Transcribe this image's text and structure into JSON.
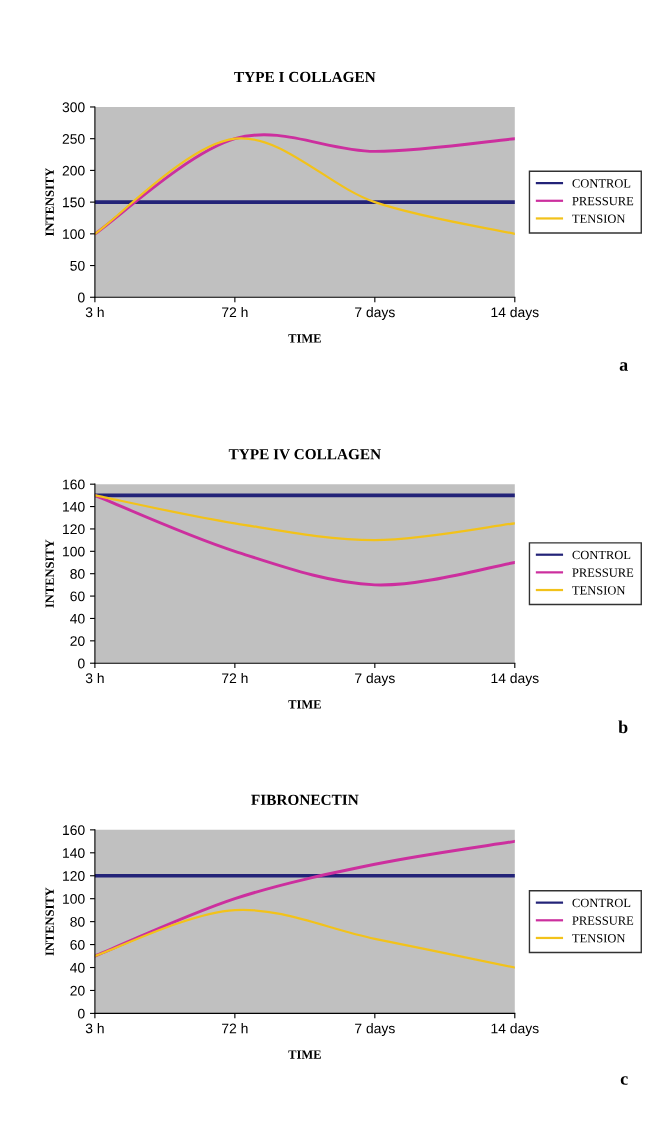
{
  "chart_data": [
    {
      "type": "line",
      "title": "TYPE I COLLAGEN",
      "xlabel": "TIME",
      "ylabel": "INTENSITY",
      "categories": [
        "3 h",
        "72 h",
        "7 days",
        "14 days"
      ],
      "ylim": [
        0,
        300
      ],
      "yticks": [
        0,
        50,
        100,
        150,
        200,
        250,
        300
      ],
      "legend": "right",
      "grid": false,
      "marker": "none",
      "annotations": [
        "a"
      ],
      "series": [
        {
          "name": "CONTROL",
          "color": "#232378",
          "values": [
            150,
            150,
            150,
            150
          ]
        },
        {
          "name": "PRESSURE",
          "color": "#cc2f9e",
          "values": [
            100,
            250,
            230,
            250
          ]
        },
        {
          "name": "TENSION",
          "color": "#f2c21a",
          "values": [
            100,
            250,
            150,
            100
          ]
        }
      ]
    },
    {
      "type": "line",
      "title": "TYPE IV COLLAGEN",
      "xlabel": "TIME",
      "ylabel": "INTENSITY",
      "categories": [
        "3 h",
        "72 h",
        "7 days",
        "14 days"
      ],
      "ylim": [
        0,
        160
      ],
      "yticks": [
        0,
        20,
        40,
        60,
        80,
        100,
        120,
        140,
        160
      ],
      "legend": "right",
      "grid": false,
      "marker": "none",
      "annotations": [
        "b"
      ],
      "series": [
        {
          "name": "CONTROL",
          "color": "#232378",
          "values": [
            150,
            150,
            150,
            150
          ]
        },
        {
          "name": "PRESSURE",
          "color": "#cc2f9e",
          "values": [
            150,
            100,
            70,
            90
          ]
        },
        {
          "name": "TENSION",
          "color": "#f2c21a",
          "values": [
            150,
            125,
            110,
            125
          ]
        }
      ]
    },
    {
      "type": "line",
      "title": "FIBRONECTIN",
      "xlabel": "TIME",
      "ylabel": "INTENSITY",
      "categories": [
        "3 h",
        "72 h",
        "7 days",
        "14 days"
      ],
      "ylim": [
        0,
        160
      ],
      "yticks": [
        0,
        20,
        40,
        60,
        80,
        100,
        120,
        140,
        160
      ],
      "legend": "right",
      "grid": false,
      "marker": "none",
      "annotations": [
        "c"
      ],
      "series": [
        {
          "name": "CONTROL",
          "color": "#232378",
          "values": [
            120,
            120,
            120,
            120
          ]
        },
        {
          "name": "PRESSURE",
          "color": "#cc2f9e",
          "values": [
            50,
            100,
            130,
            150
          ]
        },
        {
          "name": "TENSION",
          "color": "#f2c21a",
          "values": [
            50,
            90,
            65,
            40
          ]
        }
      ]
    }
  ]
}
